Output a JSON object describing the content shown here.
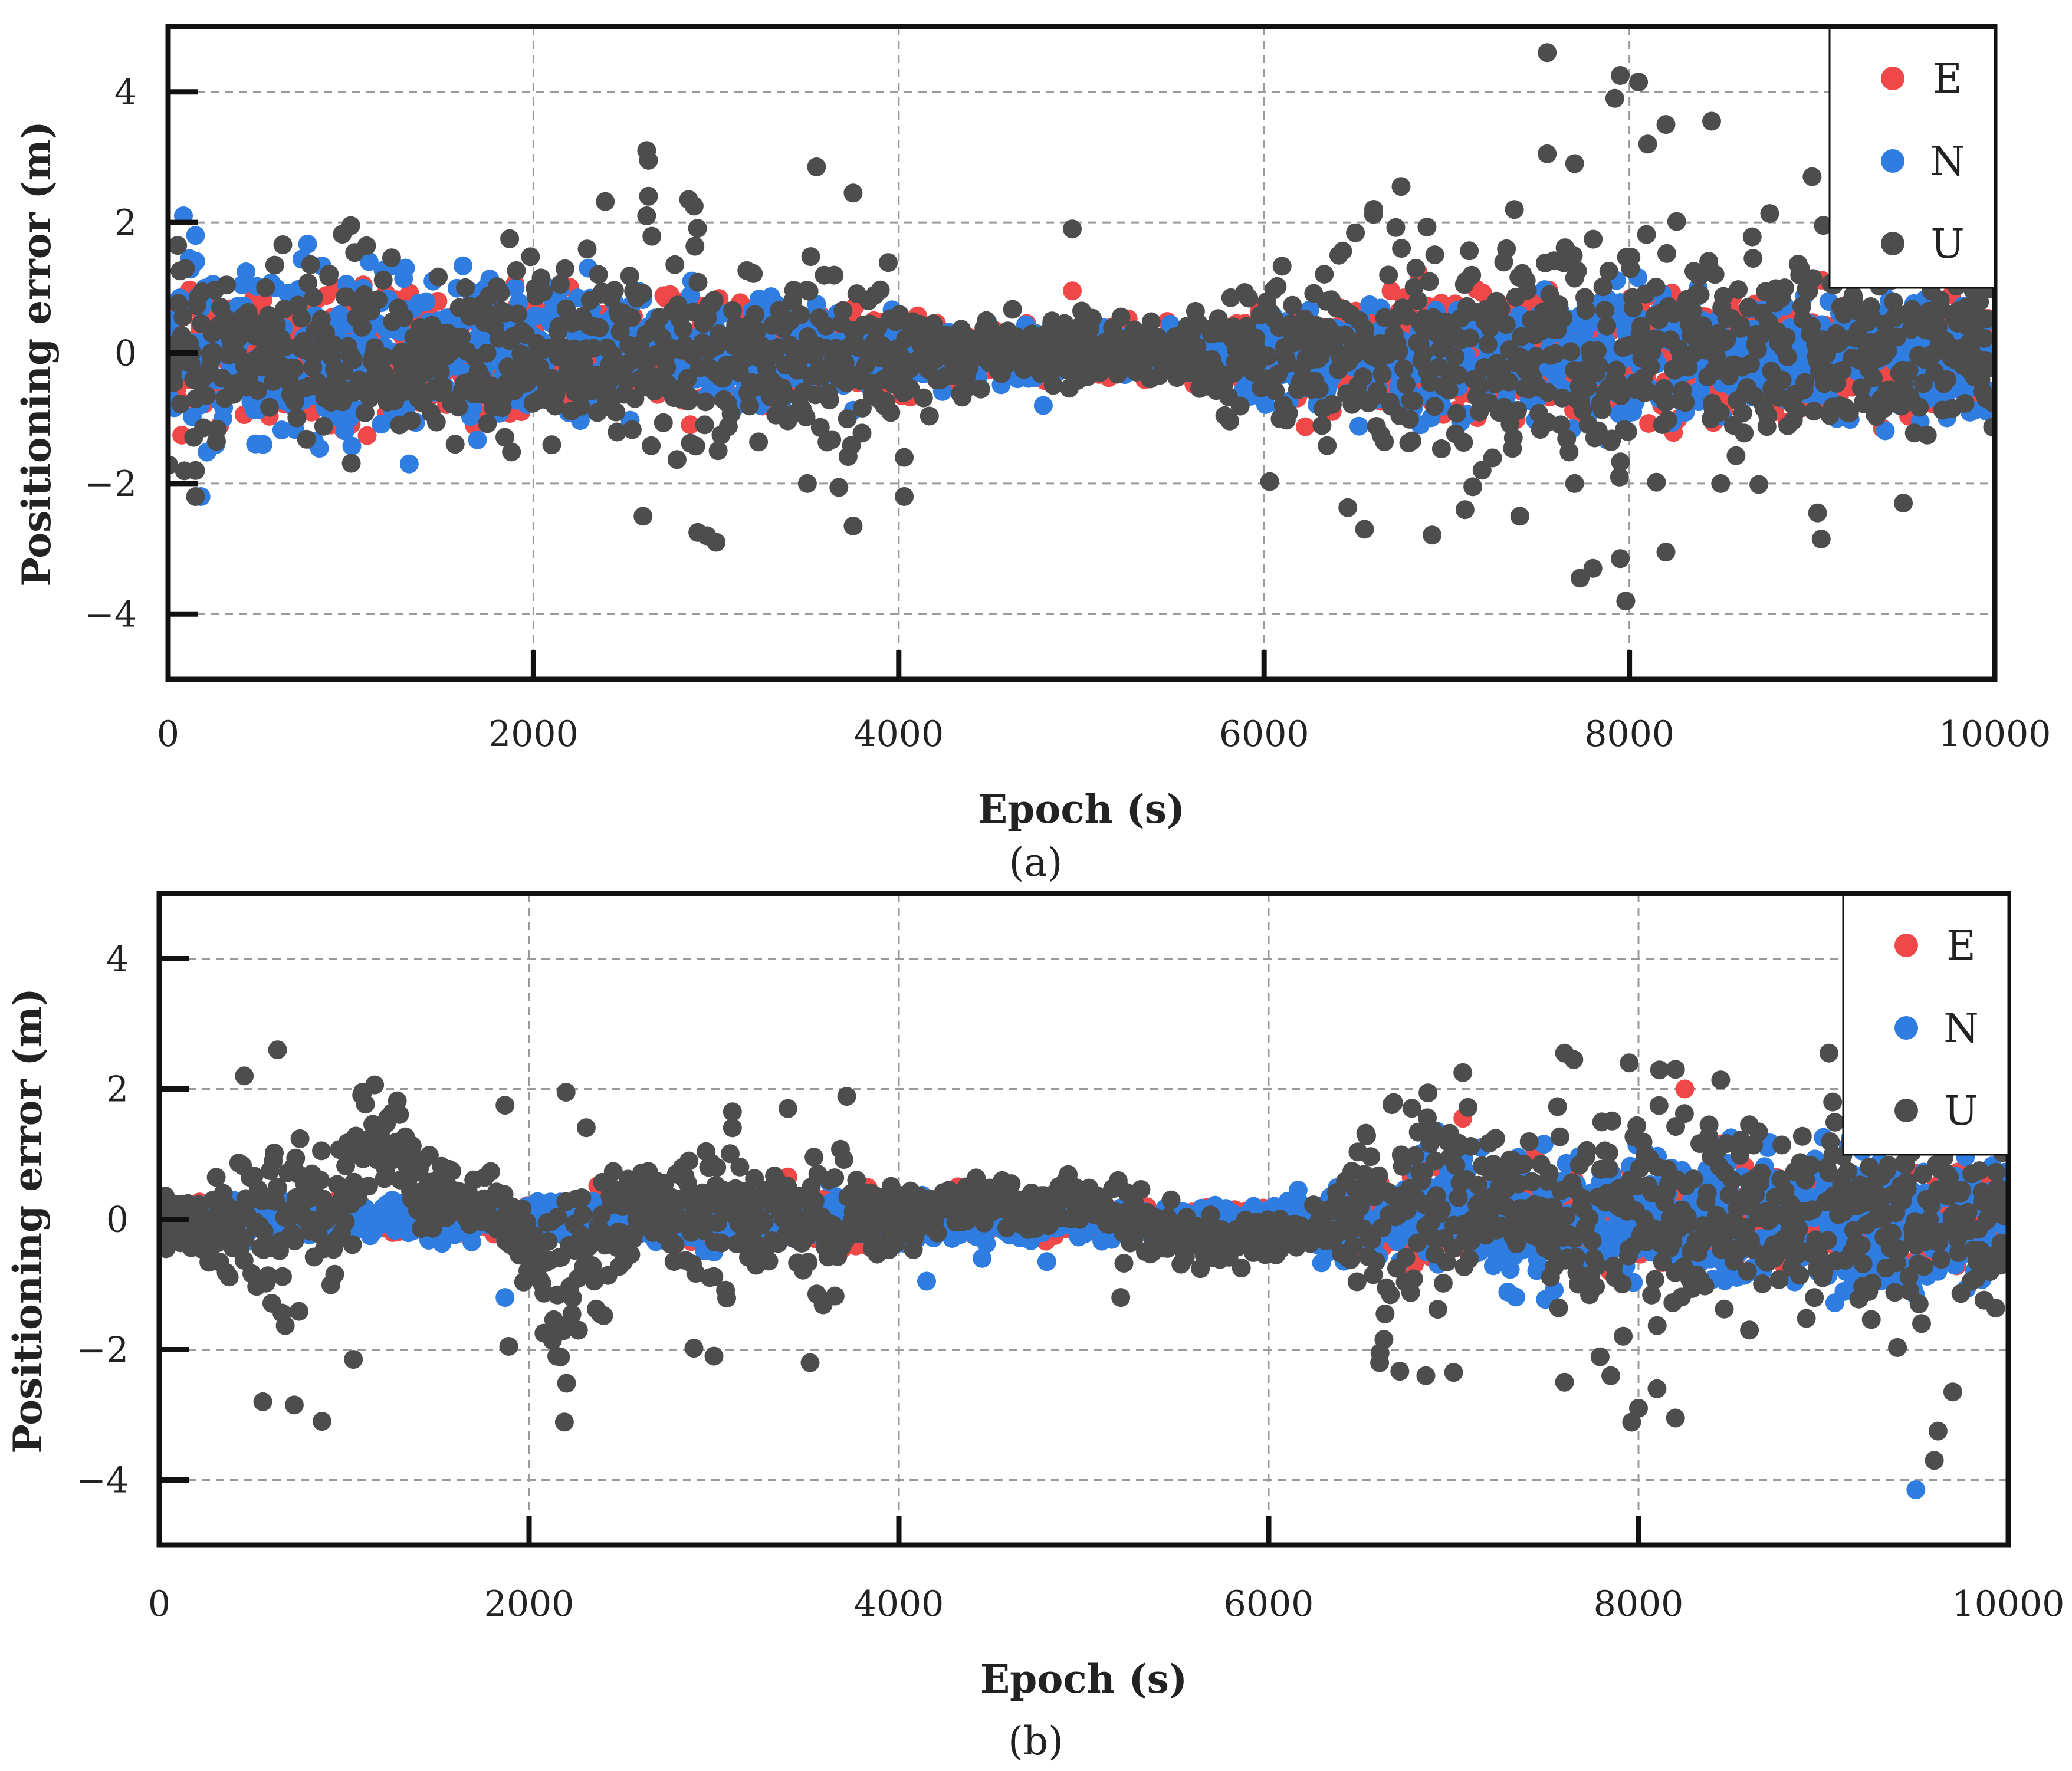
{
  "figure": {
    "panels": [
      "(a)",
      "(b)"
    ]
  },
  "colors": {
    "E": "#f04848",
    "N": "#2f7de0",
    "U": "#4d4d4d",
    "grid": "#9a9a9a",
    "axis": "#111111"
  },
  "chart_data": [
    {
      "type": "scatter",
      "panel": "(a)",
      "title": "",
      "xlabel": "Epoch (s)",
      "ylabel": "Positioning error (m)",
      "xlim": [
        0,
        10000
      ],
      "ylim": [
        -5,
        5
      ],
      "xticks": [
        0,
        2000,
        4000,
        6000,
        8000,
        10000
      ],
      "yticks": [
        -4,
        -2,
        0,
        2,
        4
      ],
      "ytick_labels": [
        "−4",
        "−2",
        "0",
        "2",
        "4"
      ],
      "grid": true,
      "legend": {
        "position": "top-right",
        "entries": [
          "E",
          "N",
          "U"
        ]
      },
      "series": [
        {
          "name": "E",
          "envelope": {
            "x": [
              0,
              1000,
              2000,
              3000,
              3500,
              4000,
              4500,
              5000,
              5500,
              6000,
              7000,
              8000,
              9000,
              10000
            ],
            "spread": [
              1.0,
              0.9,
              0.8,
              0.7,
              0.6,
              0.5,
              0.35,
              0.35,
              0.35,
              0.6,
              0.8,
              0.9,
              0.9,
              0.8
            ]
          },
          "highlights": [
            [
              4950,
              0.95
            ],
            [
              4700,
              0.45
            ],
            [
              5230,
              0.4
            ],
            [
              5700,
              -0.15
            ],
            [
              5850,
              0.45
            ]
          ]
        },
        {
          "name": "N",
          "envelope": {
            "x": [
              0,
              500,
              1000,
              1500,
              2000,
              3000,
              3500,
              4000,
              4500,
              5000,
              5500,
              6000,
              7000,
              8000,
              9000,
              10000
            ],
            "spread": [
              1.3,
              1.2,
              1.1,
              1.0,
              0.9,
              0.7,
              0.6,
              0.5,
              0.35,
              0.35,
              0.35,
              0.6,
              0.8,
              0.9,
              0.9,
              0.8
            ]
          },
          "highlights": [
            [
              150,
              1.8
            ],
            [
              180,
              -2.2
            ],
            [
              300,
              -1.0
            ],
            [
              520,
              -1.4
            ],
            [
              800,
              -1.35
            ],
            [
              1100,
              1.4
            ],
            [
              1300,
              1.3
            ],
            [
              1320,
              -1.7
            ],
            [
              1450,
              1.1
            ],
            [
              1900,
              1.0
            ],
            [
              2300,
              1.3
            ],
            [
              4800,
              -0.3
            ],
            [
              5300,
              -0.2
            ]
          ]
        },
        {
          "name": "U",
          "envelope": {
            "x": [
              0,
              500,
              1000,
              1500,
              2000,
              2500,
              3000,
              3300,
              3700,
              4000,
              4300,
              4700,
              5000,
              5500,
              6000,
              6500,
              7000,
              7500,
              8000,
              8500,
              9000,
              9500,
              10000
            ],
            "spread": [
              1.3,
              1.3,
              1.2,
              1.1,
              1.2,
              1.3,
              1.3,
              0.9,
              1.5,
              1.0,
              0.5,
              0.35,
              0.6,
              0.35,
              1.0,
              1.4,
              1.5,
              1.5,
              1.6,
              1.6,
              1.4,
              1.2,
              0.9
            ]
          },
          "highlights": [
            [
              7550,
              4.6
            ],
            [
              7950,
              4.25
            ],
            [
              8050,
              4.15
            ],
            [
              7920,
              3.9
            ],
            [
              7550,
              3.05
            ],
            [
              8200,
              3.5
            ],
            [
              8450,
              3.55
            ],
            [
              8100,
              3.2
            ],
            [
              7700,
              2.9
            ],
            [
              2620,
              3.1
            ],
            [
              2630,
              2.95
            ],
            [
              2630,
              2.4
            ],
            [
              2620,
              2.1
            ],
            [
              3550,
              2.85
            ],
            [
              3750,
              2.45
            ],
            [
              2850,
              2.35
            ],
            [
              2880,
              2.25
            ],
            [
              1000,
              1.95
            ],
            [
              1870,
              1.75
            ],
            [
              4950,
              1.9
            ],
            [
              6750,
              2.55
            ],
            [
              6600,
              2.2
            ],
            [
              9000,
              2.7
            ],
            [
              2600,
              -2.5
            ],
            [
              2900,
              -2.75
            ],
            [
              2950,
              -2.8
            ],
            [
              3000,
              -2.9
            ],
            [
              3750,
              -2.65
            ],
            [
              4030,
              -2.2
            ],
            [
              4030,
              -1.6
            ],
            [
              6550,
              -2.7
            ],
            [
              7100,
              -2.4
            ],
            [
              7400,
              -2.5
            ],
            [
              7980,
              -3.8
            ],
            [
              7950,
              -3.15
            ],
            [
              7800,
              -3.3
            ],
            [
              7730,
              -3.45
            ],
            [
              8200,
              -3.05
            ],
            [
              9050,
              -2.85
            ],
            [
              9030,
              -2.45
            ],
            [
              150,
              -2.2
            ],
            [
              150,
              -1.8
            ],
            [
              3500,
              -2.0
            ],
            [
              7700,
              -2.0
            ],
            [
              8500,
              -2.0
            ],
            [
              9500,
              -2.3
            ]
          ]
        }
      ]
    },
    {
      "type": "scatter",
      "panel": "(b)",
      "title": "",
      "xlabel": "Epoch (s)",
      "ylabel": "Positioning error (m)",
      "xlim": [
        0,
        10000
      ],
      "ylim": [
        -5,
        5
      ],
      "xticks": [
        0,
        2000,
        4000,
        6000,
        8000,
        10000
      ],
      "yticks": [
        -4,
        -2,
        0,
        2,
        4
      ],
      "ytick_labels": [
        "−4",
        "−2",
        "0",
        "2",
        "4"
      ],
      "grid": true,
      "legend": {
        "position": "top-right",
        "entries": [
          "E",
          "N",
          "U"
        ]
      },
      "series": [
        {
          "name": "E",
          "envelope": {
            "x": [
              0,
              1000,
              2000,
              3000,
              4000,
              5000,
              6000,
              6500,
              7000,
              7500,
              8000,
              8500,
              9000,
              9500,
              10000
            ],
            "spread": [
              0.25,
              0.2,
              0.3,
              0.35,
              0.3,
              0.2,
              0.15,
              0.5,
              0.6,
              0.6,
              0.7,
              0.6,
              0.6,
              0.6,
              0.6
            ]
          },
          "highlights": [
            [
              8250,
              2.0
            ],
            [
              7050,
              1.55
            ],
            [
              3400,
              0.65
            ],
            [
              4060,
              0.4
            ],
            [
              8500,
              -0.55
            ],
            [
              8400,
              -0.5
            ],
            [
              1100,
              0.2
            ],
            [
              1250,
              0.2
            ]
          ]
        },
        {
          "name": "N",
          "envelope": {
            "x": [
              0,
              1000,
              2000,
              3000,
              4000,
              5000,
              6000,
              6500,
              7000,
              7500,
              8000,
              8500,
              9000,
              9500,
              10000
            ],
            "spread": [
              0.25,
              0.2,
              0.3,
              0.3,
              0.35,
              0.25,
              0.2,
              0.6,
              0.8,
              0.9,
              0.9,
              1.0,
              1.0,
              0.9,
              0.8
            ]
          },
          "highlights": [
            [
              9500,
              -4.15
            ],
            [
              1870,
              -1.2
            ],
            [
              4150,
              -0.95
            ],
            [
              4800,
              -0.65
            ],
            [
              4450,
              -0.6
            ],
            [
              8500,
              1.25
            ],
            [
              8700,
              1.1
            ],
            [
              7150,
              1.1
            ],
            [
              7350,
              0.95
            ],
            [
              3000,
              -0.5
            ],
            [
              2000,
              -0.8
            ]
          ]
        },
        {
          "name": "U",
          "envelope": {
            "x": [
              0,
              200,
              500,
              700,
              900,
              1100,
              1400,
              1700,
              2000,
              2200,
              2400,
              2600,
              2900,
              3200,
              3500,
              3700,
              4000,
              4500,
              5000,
              5500,
              6000,
              6300,
              6600,
              6900,
              7100,
              7400,
              7700,
              8000,
              8300,
              8600,
              9000,
              9300,
              9600,
              10000
            ],
            "spread": [
              0.3,
              0.6,
              1.4,
              1.6,
              1.0,
              0.8,
              0.6,
              0.3,
              0.7,
              1.6,
              1.0,
              0.5,
              1.1,
              0.9,
              0.8,
              1.0,
              0.5,
              0.3,
              0.35,
              0.5,
              0.25,
              0.3,
              1.5,
              1.5,
              1.2,
              0.9,
              1.7,
              1.8,
              1.6,
              0.9,
              1.1,
              1.5,
              1.4,
              0.9
            ]
          },
          "trend": {
            "x": [
              0,
              600,
              1000,
              1100,
              1300,
              1500,
              1800,
              2000,
              2200,
              2600,
              3000,
              3500,
              4000,
              4500,
              5000,
              5500,
              6000,
              6500,
              7000,
              7500,
              8000,
              8500,
              9000,
              10000
            ],
            "y": [
              0,
              0.0,
              0.3,
              1.4,
              1.1,
              0.3,
              0.1,
              -0.4,
              -0.8,
              0.3,
              0.2,
              0.0,
              0.05,
              0.2,
              0.3,
              -0.3,
              -0.3,
              0.0,
              0.3,
              0.2,
              0.0,
              0.2,
              0.0,
              0.0
            ]
          },
          "highlights": [
            [
              640,
              2.6
            ],
            [
              460,
              2.2
            ],
            [
              1100,
              1.95
            ],
            [
              1870,
              1.75
            ],
            [
              2200,
              1.95
            ],
            [
              3100,
              1.65
            ],
            [
              3400,
              1.7
            ],
            [
              7050,
              2.25
            ],
            [
              7600,
              2.55
            ],
            [
              7650,
              2.45
            ],
            [
              7950,
              2.4
            ],
            [
              8200,
              2.3
            ],
            [
              9030,
              2.55
            ],
            [
              9050,
              1.8
            ],
            [
              8600,
              1.45
            ],
            [
              560,
              -2.8
            ],
            [
              730,
              -2.85
            ],
            [
              880,
              -3.1
            ],
            [
              1050,
              -2.15
            ],
            [
              1890,
              -1.95
            ],
            [
              2150,
              -2.1
            ],
            [
              3000,
              -2.1
            ],
            [
              3520,
              -2.2
            ],
            [
              5200,
              -1.2
            ],
            [
              6600,
              -2.2
            ],
            [
              6850,
              -2.4
            ],
            [
              7000,
              -2.35
            ],
            [
              7600,
              -2.5
            ],
            [
              7850,
              -2.4
            ],
            [
              8000,
              -2.9
            ],
            [
              8100,
              -2.6
            ],
            [
              8200,
              -3.05
            ],
            [
              9600,
              -3.7
            ],
            [
              9620,
              -3.25
            ],
            [
              9700,
              -2.65
            ],
            [
              8600,
              -1.7
            ]
          ]
        }
      ]
    }
  ]
}
